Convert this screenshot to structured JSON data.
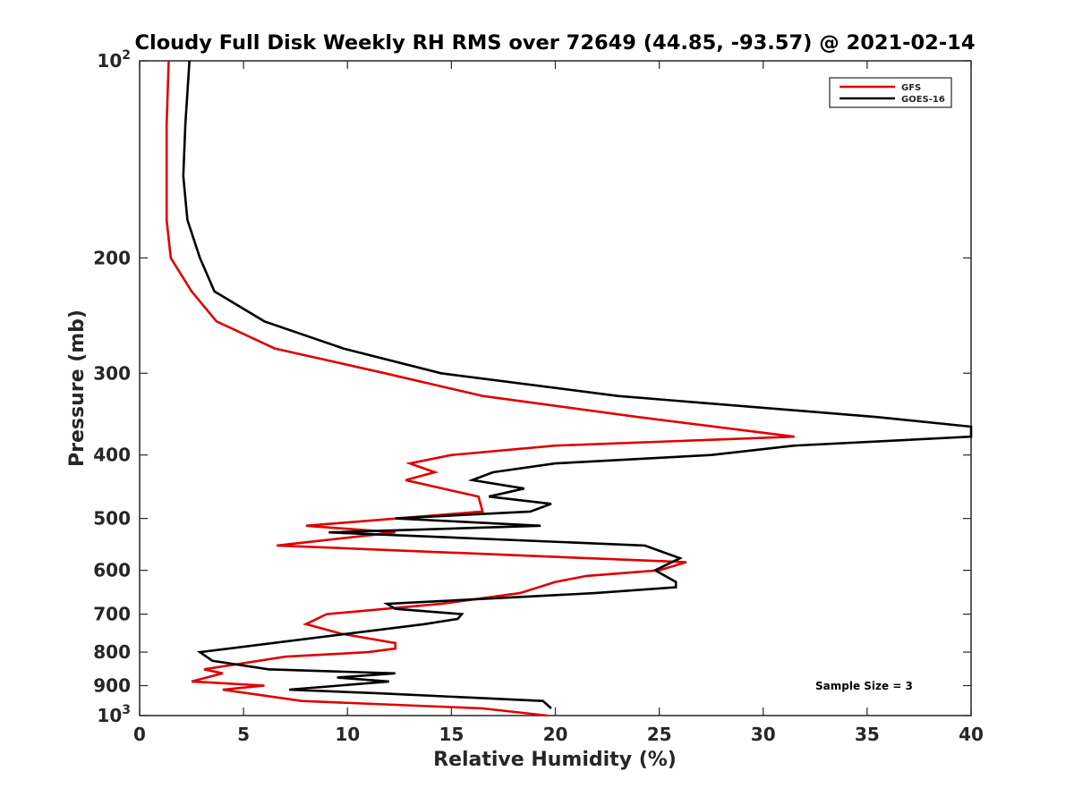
{
  "chart_data": {
    "type": "line",
    "title": "Cloudy Full Disk Weekly RH RMS over 72649 (44.85, -93.57) @ 2021-02-14",
    "xlabel": "Relative Humidity (%)",
    "ylabel": "Pressure (mb)",
    "xlim": [
      0,
      40
    ],
    "ylim": [
      100,
      1000
    ],
    "y_scale": "log",
    "y_reversed": true,
    "grid": false,
    "legend_position": "top-right",
    "x_ticks": [
      0,
      5,
      10,
      15,
      20,
      25,
      30,
      35,
      40
    ],
    "y_ticks": [
      {
        "value": 100,
        "base": "10",
        "exp": "2"
      },
      {
        "value": 200,
        "label": "200"
      },
      {
        "value": 300,
        "label": "300"
      },
      {
        "value": 400,
        "label": "400"
      },
      {
        "value": 500,
        "label": "500"
      },
      {
        "value": 600,
        "label": "600"
      },
      {
        "value": 700,
        "label": "700"
      },
      {
        "value": 800,
        "label": "800"
      },
      {
        "value": 900,
        "label": "900"
      },
      {
        "value": 1000,
        "base": "10",
        "exp": "3"
      }
    ],
    "annotation": "Sample Size = 3",
    "series": [
      {
        "name": "GFS",
        "color": "#e00000",
        "points": [
          [
            1.4,
            100
          ],
          [
            1.3,
            125
          ],
          [
            1.3,
            150
          ],
          [
            1.3,
            175
          ],
          [
            1.5,
            200
          ],
          [
            2.5,
            225
          ],
          [
            3.7,
            250
          ],
          [
            6.5,
            275
          ],
          [
            11.8,
            300
          ],
          [
            16.5,
            325
          ],
          [
            24,
            350
          ],
          [
            31.5,
            375
          ],
          [
            20,
            387
          ],
          [
            15,
            400
          ],
          [
            13,
            412
          ],
          [
            14.2,
            425
          ],
          [
            12.8,
            437
          ],
          [
            16.3,
            463
          ],
          [
            16.5,
            488
          ],
          [
            8,
            513
          ],
          [
            12.3,
            525
          ],
          [
            6.6,
            550
          ],
          [
            26.3,
            583
          ],
          [
            25,
            600
          ],
          [
            21.5,
            612
          ],
          [
            20,
            625
          ],
          [
            18.3,
            650
          ],
          [
            14.5,
            675
          ],
          [
            9,
            700
          ],
          [
            8,
            725
          ],
          [
            9.7,
            750
          ],
          [
            12.3,
            775
          ],
          [
            12.3,
            790
          ],
          [
            11,
            800
          ],
          [
            7,
            813
          ],
          [
            3.1,
            850
          ],
          [
            4,
            862
          ],
          [
            2.5,
            887
          ],
          [
            6,
            900
          ],
          [
            4,
            913
          ],
          [
            7.8,
            950
          ],
          [
            16.5,
            975
          ],
          [
            19.6,
            1000
          ]
        ]
      },
      {
        "name": "GOES-16",
        "color": "#000000",
        "points": [
          [
            2.4,
            100
          ],
          [
            2.2,
            125
          ],
          [
            2.1,
            150
          ],
          [
            2.3,
            175
          ],
          [
            2.9,
            200
          ],
          [
            3.6,
            225
          ],
          [
            6.0,
            250
          ],
          [
            9.8,
            275
          ],
          [
            14.5,
            300
          ],
          [
            23.0,
            325
          ],
          [
            35.5,
            350
          ],
          [
            40.0,
            362
          ],
          [
            40.0,
            375
          ],
          [
            31.5,
            387
          ],
          [
            27.5,
            400
          ],
          [
            20.0,
            412
          ],
          [
            17.0,
            425
          ],
          [
            16.0,
            437
          ],
          [
            18.5,
            450
          ],
          [
            16.8,
            463
          ],
          [
            19.8,
            475
          ],
          [
            18.8,
            488
          ],
          [
            12.3,
            500
          ],
          [
            19.3,
            513
          ],
          [
            9.1,
            525
          ],
          [
            24.3,
            550
          ],
          [
            26.0,
            575
          ],
          [
            24.8,
            600
          ],
          [
            25.8,
            625
          ],
          [
            25.8,
            637
          ],
          [
            21.9,
            650
          ],
          [
            11.9,
            675
          ],
          [
            12.3,
            687
          ],
          [
            15.5,
            700
          ],
          [
            15.3,
            712
          ],
          [
            13.7,
            725
          ],
          [
            2.9,
            800
          ],
          [
            3.5,
            825
          ],
          [
            6.2,
            850
          ],
          [
            12.3,
            862
          ],
          [
            9.5,
            875
          ],
          [
            12.0,
            887
          ],
          [
            7.2,
            913
          ],
          [
            11.6,
            925
          ],
          [
            19.4,
            950
          ],
          [
            19.8,
            975
          ]
        ]
      }
    ]
  }
}
